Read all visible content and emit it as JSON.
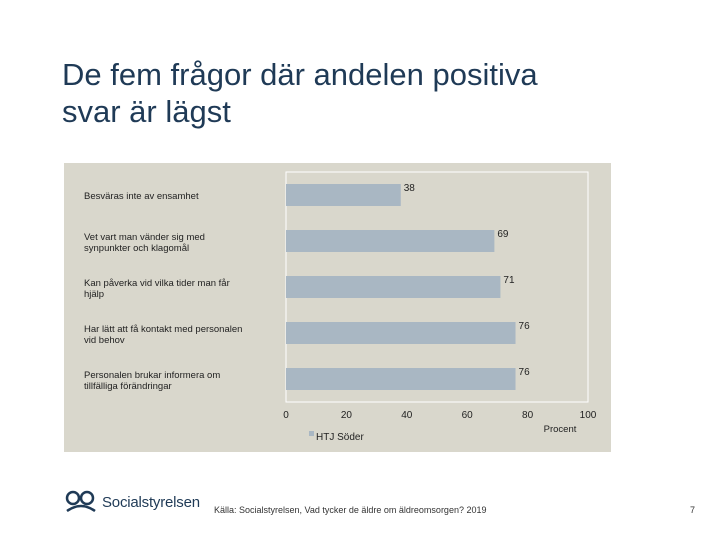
{
  "slide": {
    "title_lines": [
      "De fem frågor där andelen positiva",
      "svar är lägst"
    ],
    "source": "Källa: Socialstyrelsen, Vad tycker de äldre om äldreomsorgen? 2019",
    "page_number": "7",
    "logo_text": "Socialstyrelsen"
  },
  "colors": {
    "bar": "#a9b7c3",
    "panel": "#d9d7cc",
    "title": "#1f3a56"
  },
  "chart_data": {
    "type": "bar",
    "orientation": "horizontal",
    "categories": [
      [
        "Besväras inte av ensamhet"
      ],
      [
        "Vet vart man vänder sig med",
        "synpunkter och klagomål"
      ],
      [
        "Kan påverka vid vilka tider man får",
        "hjälp"
      ],
      [
        "Har lätt att få kontakt med personalen",
        "vid behov"
      ],
      [
        "Personalen brukar informera om",
        "tillfälliga förändringar"
      ]
    ],
    "series": [
      {
        "name": "HTJ Söder",
        "values": [
          38,
          69,
          71,
          76,
          76
        ]
      }
    ],
    "xlim": [
      0,
      100
    ],
    "xticks": [
      0,
      20,
      40,
      60,
      80,
      100
    ],
    "xlabel": "Procent",
    "legend_position": "bottom-left",
    "grid": false
  }
}
